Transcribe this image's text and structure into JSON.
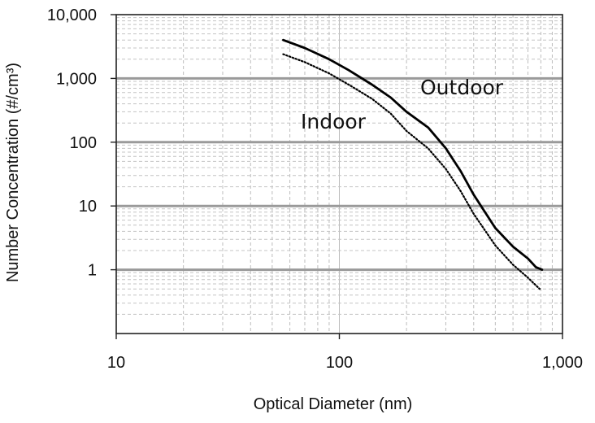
{
  "chart_data": {
    "type": "line",
    "title": "",
    "xlabel": "Optical Diameter (nm)",
    "ylabel": "Number Concentration (#/cm³)",
    "xscale": "log",
    "yscale": "log",
    "xlim": [
      10,
      1000
    ],
    "ylim": [
      0.1,
      10000
    ],
    "grid": true,
    "x_ticks": [
      {
        "value": 10,
        "label": "10"
      },
      {
        "value": 100,
        "label": "100"
      },
      {
        "value": 1000,
        "label": "1,000"
      }
    ],
    "y_ticks": [
      {
        "value": 10000,
        "label": "10,000"
      },
      {
        "value": 1000,
        "label": "1,000"
      },
      {
        "value": 100,
        "label": "100"
      },
      {
        "value": 10,
        "label": "10"
      },
      {
        "value": 1,
        "label": "1"
      }
    ],
    "series": [
      {
        "name": "Outdoor",
        "style": "solid",
        "color": "#000000",
        "x": [
          56,
          70,
          90,
          110,
          140,
          170,
          200,
          250,
          300,
          350,
          400,
          500,
          600,
          700,
          760,
          810
        ],
        "values": [
          4000,
          3000,
          2000,
          1350,
          800,
          500,
          300,
          170,
          80,
          35,
          15,
          4.5,
          2.3,
          1.5,
          1.1,
          1.0
        ]
      },
      {
        "name": "Indoor",
        "style": "dotted",
        "color": "#000000",
        "x": [
          56,
          70,
          90,
          110,
          140,
          170,
          200,
          250,
          300,
          350,
          400,
          500,
          600,
          700,
          790
        ],
        "values": [
          2400,
          1800,
          1200,
          800,
          480,
          280,
          150,
          80,
          38,
          17,
          7.5,
          2.4,
          1.2,
          0.75,
          0.5
        ]
      }
    ],
    "annotations": [
      {
        "text": "Outdoor",
        "series": "Outdoor"
      },
      {
        "text": "Indoor",
        "series": "Indoor"
      }
    ]
  }
}
